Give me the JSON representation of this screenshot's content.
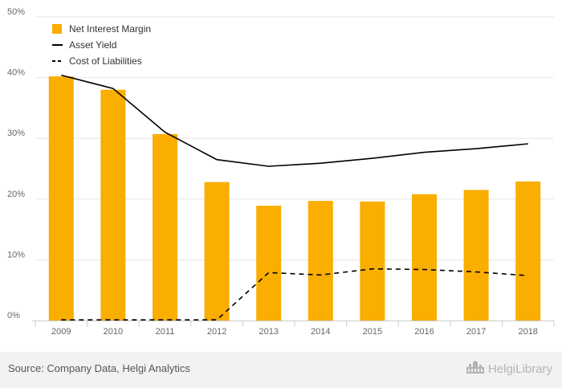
{
  "chart_data": {
    "type": "bar",
    "categories": [
      "2009",
      "2010",
      "2011",
      "2012",
      "2013",
      "2014",
      "2015",
      "2016",
      "2017",
      "2018"
    ],
    "yticks": [
      "0%",
      "10%",
      "20%",
      "30%",
      "40%",
      "50%"
    ],
    "ylim": [
      0,
      50
    ],
    "grid": true,
    "legend_position": "top-left",
    "series": [
      {
        "name": "Net Interest Margin",
        "kind": "bar",
        "color": "#f9ae00",
        "values": [
          40.2,
          38.0,
          30.7,
          22.8,
          18.9,
          19.7,
          19.6,
          20.8,
          21.5,
          22.9
        ]
      },
      {
        "name": "Asset Yield",
        "kind": "line",
        "style": "solid",
        "color": "#000000",
        "values": [
          40.4,
          38.2,
          31.0,
          26.5,
          25.4,
          25.9,
          26.7,
          27.7,
          28.3,
          29.1
        ]
      },
      {
        "name": "Cost of Liabilities",
        "kind": "line",
        "style": "dashed",
        "color": "#000000",
        "values": [
          0.1,
          0.1,
          0.1,
          0.1,
          7.9,
          7.5,
          8.5,
          8.4,
          8.0,
          7.4
        ]
      }
    ]
  },
  "footer": {
    "source": "Source: Company Data, Helgi Analytics",
    "brand": "HelgiLibrary",
    "logo_icon": "helgi-building-icon"
  }
}
